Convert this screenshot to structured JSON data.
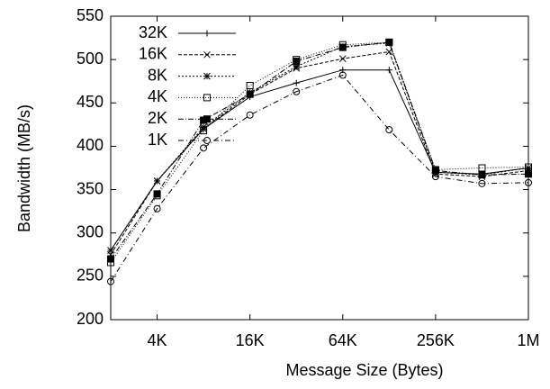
{
  "chart_data": {
    "type": "line",
    "xlabel": "Message Size (Bytes)",
    "ylabel": "Bandwidth (MB/s)",
    "x": [
      2,
      4,
      8,
      16,
      32,
      64,
      128,
      256,
      512,
      1024
    ],
    "xscale": "log2",
    "xlim": [
      2,
      1024
    ],
    "xticks": [
      {
        "value": 4,
        "label": "4K"
      },
      {
        "value": 16,
        "label": "16K"
      },
      {
        "value": 64,
        "label": "64K"
      },
      {
        "value": 256,
        "label": "256K"
      },
      {
        "value": 1024,
        "label": "1M"
      }
    ],
    "ylim": [
      200,
      550
    ],
    "yticks": [
      200,
      250,
      300,
      350,
      400,
      450,
      500,
      550
    ],
    "legend": "upper left",
    "series": [
      {
        "name": "32K",
        "color": "#000000",
        "dash": "none",
        "marker": "plus",
        "values": [
          280,
          360,
          420,
          457,
          473,
          488,
          488,
          370,
          368,
          375
        ]
      },
      {
        "name": "16K",
        "color": "#000000",
        "dash": "4,2",
        "marker": "cross",
        "values": [
          275,
          360,
          420,
          460,
          490,
          501,
          509,
          368,
          365,
          372
        ]
      },
      {
        "name": "8K",
        "color": "#000000",
        "dash": "2,2",
        "marker": "star",
        "values": [
          280,
          360,
          422,
          462,
          492,
          515,
          519,
          370,
          367,
          375
        ]
      },
      {
        "name": "4K",
        "color": "#000000",
        "dash": "1,2",
        "marker": "square",
        "values": [
          266,
          343,
          418,
          470,
          500,
          517,
          520,
          373,
          375,
          376
        ]
      },
      {
        "name": "2K",
        "color": "#000000",
        "dash": "6,2,1,2",
        "marker": "filled-square",
        "values": [
          270,
          345,
          430,
          460,
          498,
          514,
          520,
          372,
          367,
          368
        ]
      },
      {
        "name": "1K",
        "color": "#000000",
        "dash": "6,3,1,3",
        "marker": "circle",
        "values": [
          244,
          328,
          398,
          436,
          463,
          482,
          419,
          365,
          357,
          358
        ]
      }
    ]
  }
}
